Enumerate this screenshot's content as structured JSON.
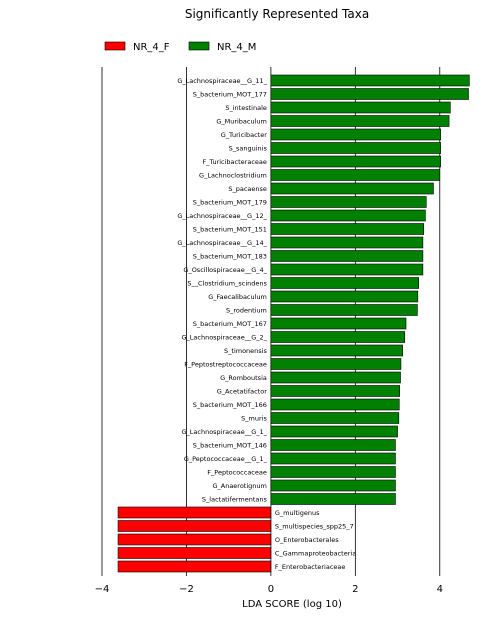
{
  "chart_data": {
    "type": "bar",
    "orientation": "horizontal",
    "title": "Significantly Represented Taxa",
    "xlabel": "LDA SCORE (log 10)",
    "xlim": [
      -4,
      5
    ],
    "xticks": [
      -4,
      -2,
      0,
      2,
      4
    ],
    "grid": true,
    "legend_position": "top-left",
    "series": [
      {
        "name": "NR_4_F",
        "color": "#ff0000"
      },
      {
        "name": "NR_4_M",
        "color": "#008000"
      }
    ],
    "bars": [
      {
        "label": "G_Lachnospiraceae__G_11_",
        "value": 4.7,
        "group": "NR_4_M"
      },
      {
        "label": "S_bacterium_MOT_177",
        "value": 4.68,
        "group": "NR_4_M"
      },
      {
        "label": "S_intestinale",
        "value": 4.25,
        "group": "NR_4_M"
      },
      {
        "label": "G_Muribaculum",
        "value": 4.22,
        "group": "NR_4_M"
      },
      {
        "label": "G_Turicibacter",
        "value": 4.02,
        "group": "NR_4_M"
      },
      {
        "label": "S_sanguinis",
        "value": 4.02,
        "group": "NR_4_M"
      },
      {
        "label": "F_Turicibacteraceae",
        "value": 4.02,
        "group": "NR_4_M"
      },
      {
        "label": "G_Lachnoclostridium",
        "value": 4.0,
        "group": "NR_4_M"
      },
      {
        "label": "S_pacaense",
        "value": 3.85,
        "group": "NR_4_M"
      },
      {
        "label": "S_bacterium_MOT_179",
        "value": 3.68,
        "group": "NR_4_M"
      },
      {
        "label": "G_Lachnospiraceae__G_12_",
        "value": 3.66,
        "group": "NR_4_M"
      },
      {
        "label": "S_bacterium_MOT_151",
        "value": 3.62,
        "group": "NR_4_M"
      },
      {
        "label": "G_Lachnospiraceae__G_14_",
        "value": 3.6,
        "group": "NR_4_M"
      },
      {
        "label": "S_bacterium_MOT_183",
        "value": 3.6,
        "group": "NR_4_M"
      },
      {
        "label": "G_Oscillospiraceae__G_4_",
        "value": 3.6,
        "group": "NR_4_M"
      },
      {
        "label": "S__Clostridium_scindens",
        "value": 3.5,
        "group": "NR_4_M"
      },
      {
        "label": "G_Faecalibaculum",
        "value": 3.48,
        "group": "NR_4_M"
      },
      {
        "label": "S_rodentium",
        "value": 3.47,
        "group": "NR_4_M"
      },
      {
        "label": "S_bacterium_MOT_167",
        "value": 3.2,
        "group": "NR_4_M"
      },
      {
        "label": "G_Lachnospiraceae__G_2_",
        "value": 3.17,
        "group": "NR_4_M"
      },
      {
        "label": "S_timonensis",
        "value": 3.12,
        "group": "NR_4_M"
      },
      {
        "label": "F_Peptostreptococcaceae",
        "value": 3.08,
        "group": "NR_4_M"
      },
      {
        "label": "G_Romboutsia",
        "value": 3.07,
        "group": "NR_4_M"
      },
      {
        "label": "G_Acetatifactor",
        "value": 3.05,
        "group": "NR_4_M"
      },
      {
        "label": "S_bacterium_MOT_166",
        "value": 3.04,
        "group": "NR_4_M"
      },
      {
        "label": "S_muris",
        "value": 3.03,
        "group": "NR_4_M"
      },
      {
        "label": "G_Lachnospiraceae__G_1_",
        "value": 3.0,
        "group": "NR_4_M"
      },
      {
        "label": "S_bacterium_MOT_146",
        "value": 2.95,
        "group": "NR_4_M"
      },
      {
        "label": "G_Peptococcaceae__G_1_",
        "value": 2.95,
        "group": "NR_4_M"
      },
      {
        "label": "F_Peptococcaceae",
        "value": 2.95,
        "group": "NR_4_M"
      },
      {
        "label": "G_Anaerotignum",
        "value": 2.95,
        "group": "NR_4_M"
      },
      {
        "label": "S_lactatifermentans",
        "value": 2.95,
        "group": "NR_4_M"
      },
      {
        "label": "G_multigenus",
        "value": -3.62,
        "group": "NR_4_F"
      },
      {
        "label": "S_multispecies_spp25_7",
        "value": -3.62,
        "group": "NR_4_F"
      },
      {
        "label": "O_Enterobacterales",
        "value": -3.62,
        "group": "NR_4_F"
      },
      {
        "label": "C_Gammaproteobacteria",
        "value": -3.62,
        "group": "NR_4_F"
      },
      {
        "label": "F_Enterobacteriaceae",
        "value": -3.62,
        "group": "NR_4_F"
      }
    ]
  }
}
